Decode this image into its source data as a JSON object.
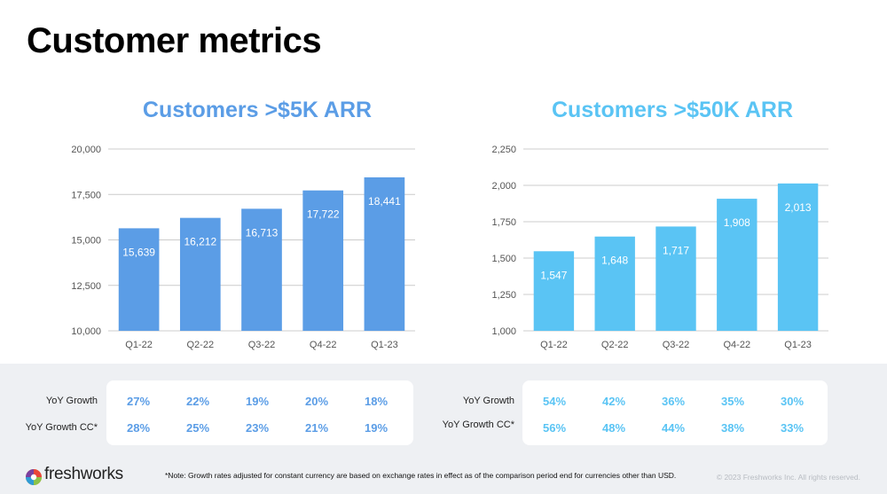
{
  "page_title": "Customer metrics",
  "chart_data": [
    {
      "type": "bar",
      "title": "Customers >$5K ARR",
      "categories": [
        "Q1-22",
        "Q2-22",
        "Q3-22",
        "Q4-22",
        "Q1-23"
      ],
      "values": [
        15639,
        16212,
        16713,
        17722,
        18441
      ],
      "data_labels": [
        "15,639",
        "16,212",
        "16,713",
        "17,722",
        "18,441"
      ],
      "yticks": [
        "10,000",
        "12,500",
        "15,000",
        "17,500",
        "20,000"
      ],
      "ylim": [
        10000,
        20000
      ],
      "ystep": 2500,
      "color": "#5b9de6",
      "grid": true,
      "xlabel": "",
      "ylabel": ""
    },
    {
      "type": "bar",
      "title": "Customers >$50K ARR",
      "categories": [
        "Q1-22",
        "Q2-22",
        "Q3-22",
        "Q4-22",
        "Q1-23"
      ],
      "values": [
        1547,
        1648,
        1717,
        1908,
        2013
      ],
      "data_labels": [
        "1,547",
        "1,648",
        "1,717",
        "1,908",
        "2,013"
      ],
      "yticks": [
        "1,000",
        "1,250",
        "1,500",
        "1,750",
        "2,000",
        "2,250"
      ],
      "ylim": [
        1000,
        2250
      ],
      "ystep": 250,
      "color": "#5ac4f4",
      "grid": true,
      "xlabel": "",
      "ylabel": ""
    }
  ],
  "growth_tables": [
    {
      "rows": [
        {
          "label": "YoY Growth",
          "values": [
            "27%",
            "22%",
            "19%",
            "20%",
            "18%"
          ]
        },
        {
          "label": "YoY Growth CC*",
          "values": [
            "28%",
            "25%",
            "23%",
            "21%",
            "19%"
          ]
        }
      ]
    },
    {
      "rows": [
        {
          "label": "YoY Growth",
          "values": [
            "54%",
            "42%",
            "36%",
            "35%",
            "30%"
          ]
        },
        {
          "label": "YoY Growth CC*",
          "values": [
            "56%",
            "48%",
            "44%",
            "38%",
            "33%"
          ]
        }
      ]
    }
  ],
  "footer": {
    "logo_text": "freshworks",
    "note": "*Note: Growth rates adjusted for constant currency are based on exchange rates in effect as of the comparison period end for currencies other than USD.",
    "copyright": "© 2023 Freshworks Inc. All rights reserved."
  },
  "logo_colors": [
    "#f5a623",
    "#e9473b",
    "#8bc34a",
    "#2e9bd6",
    "#7b3fa0"
  ]
}
